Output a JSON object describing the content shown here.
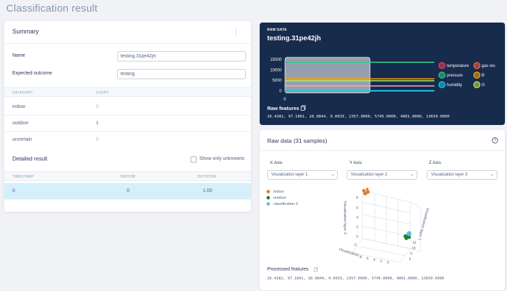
{
  "page": {
    "title": "Classification result"
  },
  "summary": {
    "title": "Summary",
    "menu_icon": "more-vertical-icon",
    "name_label": "Name",
    "name_value": "testing.31pe42jh",
    "expected_label": "Expected outcome",
    "expected_value": "testing",
    "columns": [
      "CATEGORY",
      "COUNT"
    ],
    "rows": [
      {
        "category": "indoor",
        "count": "0"
      },
      {
        "category": "outdoor",
        "count": "1"
      },
      {
        "category": "uncertain",
        "count": "0"
      }
    ],
    "detailed_title": "Detailed result",
    "show_unknowns_label": "Show only unknowns",
    "detail_columns": [
      "TIMESTAMP",
      "INDOOR",
      "OUTDOOR"
    ],
    "detail_rows": [
      {
        "timestamp": "0",
        "indoor": "0",
        "outdoor": "1.00"
      }
    ]
  },
  "raw": {
    "label": "RAW DATA",
    "name": "testing.31pe42jh",
    "features_title": "Raw features",
    "features_value": "26.4282, 97.1861, 28.9844, 0.0033, 2357.0000, 5745.0000, 4801.0000, 13650.0000",
    "chart_data": {
      "type": "line",
      "y_ticks": [
        "15000",
        "10000",
        "5000",
        "0"
      ],
      "x_ticks": [
        "0"
      ],
      "ylim": [
        0,
        15000
      ],
      "series": [
        {
          "name": "temperature",
          "color": "#f5365c",
          "value": 26.4282
        },
        {
          "name": "gas res",
          "color": "#fb6340",
          "value": 0.0033
        },
        {
          "name": "pressure",
          "color": "#2dce89",
          "value": 97.1861
        },
        {
          "name": "B",
          "color": "#ffa500",
          "value": 5745
        },
        {
          "name": "humidity",
          "color": "#11cdef",
          "value": 28.9844
        },
        {
          "name": "G",
          "color": "#c8e64c",
          "value": 4801
        }
      ],
      "other_values": [
        2357,
        13650
      ]
    }
  },
  "viz": {
    "title": "Raw data (31 samples)",
    "axes": [
      {
        "label": "X Axis",
        "selected": "Visualization layer 1"
      },
      {
        "label": "Y Axis",
        "selected": "Visualization layer 2"
      },
      {
        "label": "Z Axis",
        "selected": "Visualization layer 3"
      }
    ],
    "legend": [
      {
        "name": "indoor",
        "color": "#e07b2a"
      },
      {
        "name": "outdoor",
        "color": "#1e7f3a"
      },
      {
        "name": "classification 0",
        "color": "#5bc0de"
      }
    ],
    "axis_titles": {
      "x": "Visualization ...",
      "y": "Visualization layer 1",
      "z": "Visualization layer 3"
    },
    "z_ticks": [
      "8",
      "6",
      "4",
      "2",
      "0",
      "-2"
    ],
    "y_ticks": [
      "15",
      "10",
      "5",
      "0"
    ],
    "x_ticks": [
      "8",
      "6",
      "4",
      "2",
      "0"
    ],
    "processed_title": "Processed features",
    "processed_value": "26.4282, 97.1861, 28.9844, 0.0033, 2357.0000, 5745.0000, 4801.0000, 13650.0000"
  }
}
